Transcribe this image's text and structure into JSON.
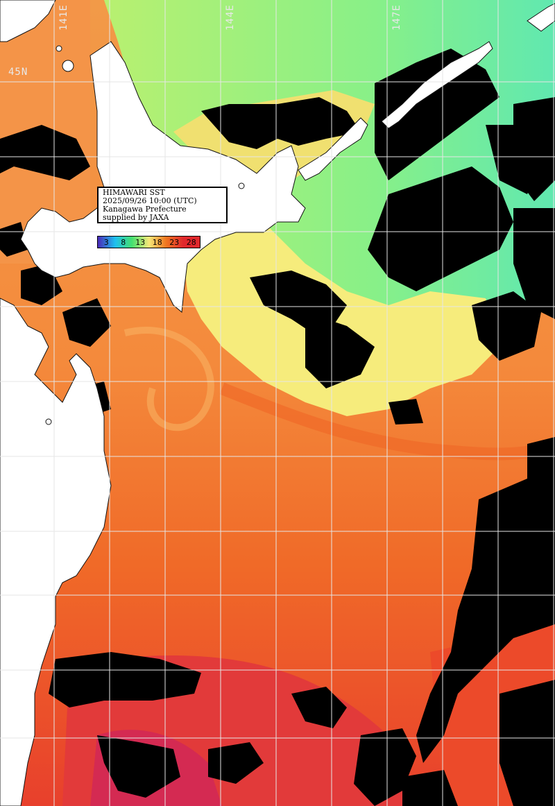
{
  "map": {
    "info": {
      "title": "HIMAWARI SST",
      "datetime": "2025/09/26 10:00 (UTC)",
      "region": "Kanagawa Prefecture",
      "credit": "supplied by JAXA"
    },
    "legend": [
      {
        "value": "3",
        "color": "#4a2ab8"
      },
      {
        "value": "8",
        "color": "#1ec0f0"
      },
      {
        "value": "13",
        "color": "#44e070"
      },
      {
        "value": "18",
        "color": "#f8e878"
      },
      {
        "value": "23",
        "color": "#f07820"
      },
      {
        "value": "28",
        "color": "#e0282c"
      }
    ],
    "lon_labels": [
      "141E",
      "144E",
      "147E"
    ],
    "lat_labels": [
      "45N"
    ],
    "colors": {
      "land": "#ffffff",
      "cloud": "#000000",
      "cold_water": "#7cf08c",
      "cool_water": "#d8f068",
      "mild_water": "#f8e880",
      "warm_water": "#f48a3c",
      "warmer_water": "#f06a28",
      "hot_water": "#e8402c",
      "hottest_water": "#d42a44",
      "grid": "#e6e6e6"
    }
  }
}
